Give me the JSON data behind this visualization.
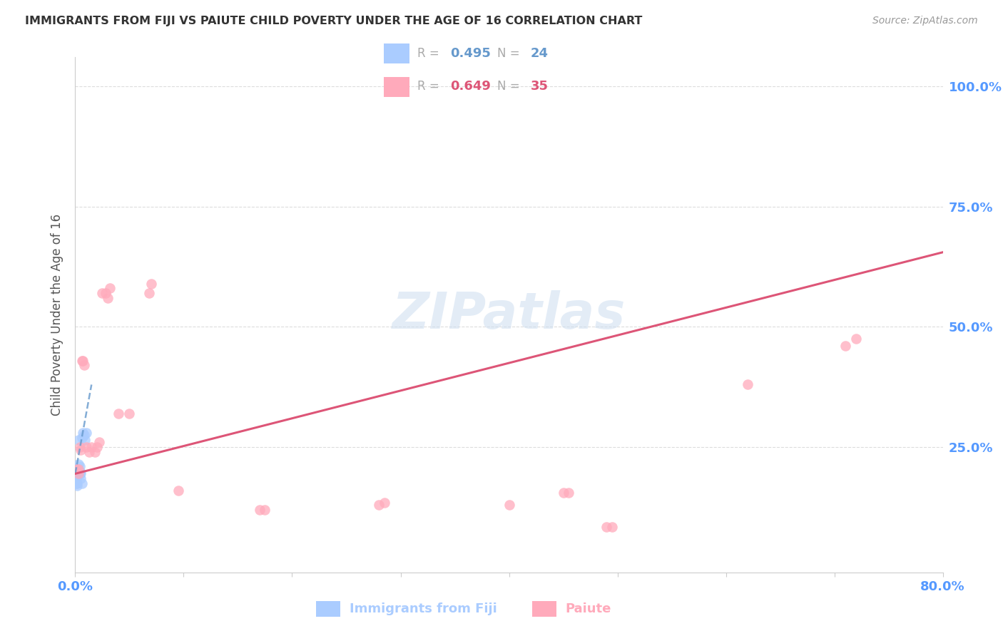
{
  "title": "IMMIGRANTS FROM FIJI VS PAIUTE CHILD POVERTY UNDER THE AGE OF 16 CORRELATION CHART",
  "source": "Source: ZipAtlas.com",
  "ylabel": "Child Poverty Under the Age of 16",
  "xlim": [
    0.0,
    0.8
  ],
  "ylim": [
    -0.01,
    1.06
  ],
  "fiji_color": "#aaccff",
  "paiute_color": "#ffaabb",
  "fiji_trend_color": "#6699cc",
  "paiute_trend_color": "#dd5577",
  "fiji_R": "0.495",
  "fiji_N": "24",
  "paiute_R": "0.649",
  "paiute_N": "35",
  "fiji_points_x": [
    0.001,
    0.001,
    0.001,
    0.001,
    0.002,
    0.002,
    0.002,
    0.002,
    0.002,
    0.003,
    0.003,
    0.003,
    0.003,
    0.004,
    0.004,
    0.004,
    0.005,
    0.005,
    0.006,
    0.006,
    0.007,
    0.008,
    0.009,
    0.01
  ],
  "fiji_points_y": [
    0.195,
    0.205,
    0.185,
    0.175,
    0.19,
    0.2,
    0.195,
    0.175,
    0.17,
    0.195,
    0.205,
    0.215,
    0.265,
    0.2,
    0.21,
    0.195,
    0.185,
    0.195,
    0.27,
    0.175,
    0.28,
    0.275,
    0.265,
    0.28
  ],
  "paiute_points_x": [
    0.002,
    0.003,
    0.003,
    0.004,
    0.005,
    0.006,
    0.007,
    0.008,
    0.01,
    0.013,
    0.015,
    0.018,
    0.02,
    0.022,
    0.025,
    0.028,
    0.03,
    0.032,
    0.04,
    0.05,
    0.068,
    0.07,
    0.095,
    0.17,
    0.175,
    0.28,
    0.285,
    0.4,
    0.45,
    0.455,
    0.49,
    0.495,
    0.62,
    0.71,
    0.72
  ],
  "paiute_points_y": [
    0.205,
    0.195,
    0.205,
    0.25,
    0.245,
    0.43,
    0.43,
    0.42,
    0.25,
    0.24,
    0.25,
    0.24,
    0.25,
    0.26,
    0.57,
    0.57,
    0.56,
    0.58,
    0.32,
    0.32,
    0.57,
    0.59,
    0.16,
    0.12,
    0.12,
    0.13,
    0.135,
    0.13,
    0.155,
    0.155,
    0.085,
    0.085,
    0.38,
    0.46,
    0.475
  ],
  "fiji_trend_x0": 0.0,
  "fiji_trend_y0": 0.195,
  "fiji_trend_x1": 0.015,
  "fiji_trend_y1": 0.38,
  "paiute_trend_x0": 0.0,
  "paiute_trend_y0": 0.195,
  "paiute_trend_x1": 0.8,
  "paiute_trend_y1": 0.655,
  "background_color": "#ffffff",
  "grid_color": "#dddddd",
  "marker_size": 110,
  "tick_color": "#5599ff",
  "ylabel_color": "#555555",
  "title_color": "#333333",
  "source_color": "#999999"
}
